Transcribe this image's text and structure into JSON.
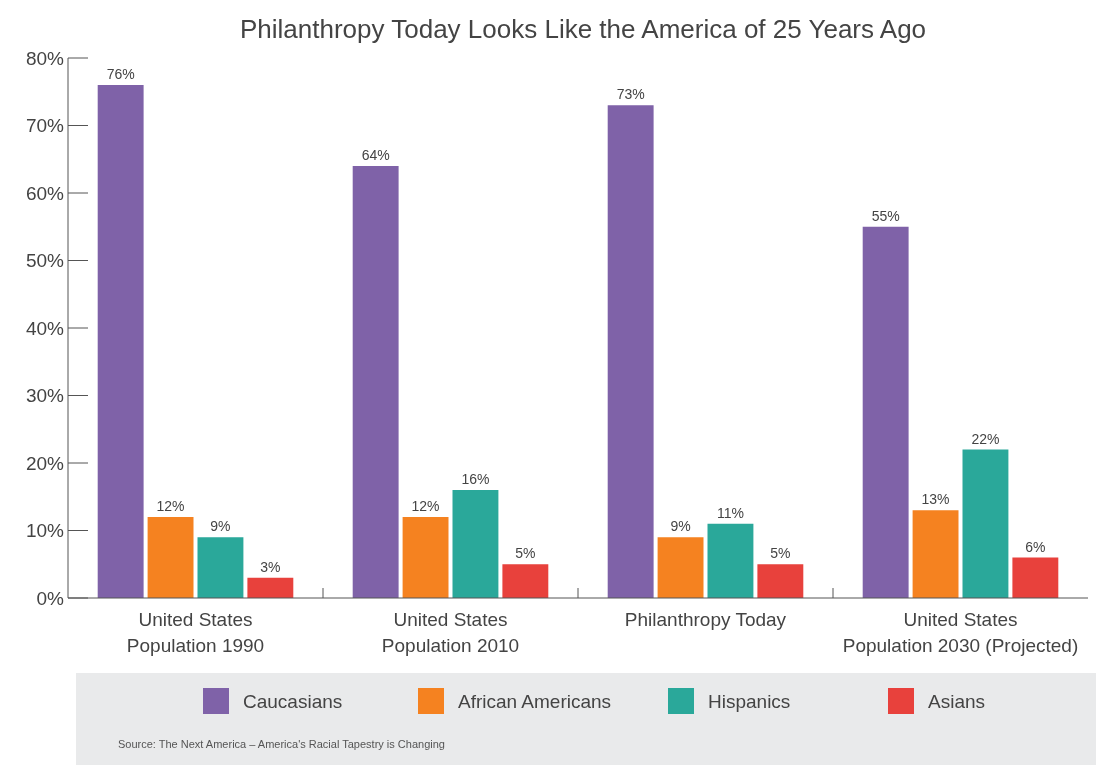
{
  "chart_data": {
    "type": "bar",
    "title": "Philanthropy Today Looks Like the America of 25 Years Ago",
    "categories": [
      "United States\nPopulation 1990",
      "United States\nPopulation 2010",
      "Philanthropy Today",
      "United States\nPopulation 2030 (Projected)"
    ],
    "series": [
      {
        "name": "Caucasians",
        "color": "#7f62a8",
        "values": [
          76,
          64,
          73,
          55
        ],
        "value_labels": [
          "76%",
          "64%",
          "73%",
          "55%"
        ]
      },
      {
        "name": "African Americans",
        "color": "#f58220",
        "values": [
          12,
          12,
          9,
          13
        ],
        "value_labels": [
          "12%",
          "12%",
          "9%",
          "13%"
        ]
      },
      {
        "name": "Hispanics",
        "color": "#2aa89a",
        "values": [
          9,
          16,
          11,
          22
        ],
        "value_labels": [
          "9%",
          "16%",
          "11%",
          "22%"
        ]
      },
      {
        "name": "Asians",
        "color": "#e8413c",
        "values": [
          3,
          5,
          5,
          6
        ],
        "value_labels": [
          "3%",
          "5%",
          "5%",
          "6%"
        ]
      }
    ],
    "ylim": [
      0,
      80
    ],
    "yticks": [
      {
        "value": 0,
        "label": "0%"
      },
      {
        "value": 10,
        "label": "10%"
      },
      {
        "value": 20,
        "label": "20%"
      },
      {
        "value": 30,
        "label": "30%"
      },
      {
        "value": 40,
        "label": "40%"
      },
      {
        "value": 50,
        "label": "50%"
      },
      {
        "value": 60,
        "label": "60%"
      },
      {
        "value": 70,
        "label": "70%"
      },
      {
        "value": 80,
        "label": "80%"
      }
    ],
    "grid": false,
    "legend": "bottom",
    "annotations": [
      "Source: The Next America – America's Racial Tapestry is Changing"
    ]
  }
}
